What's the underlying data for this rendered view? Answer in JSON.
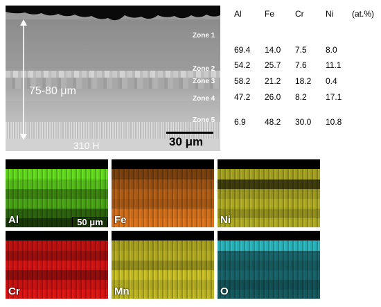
{
  "sem": {
    "zones": [
      "Zone 1",
      "Zone 2",
      "Zone 3",
      "Zone 4",
      "Zone 5"
    ],
    "thickness_label": "75-80 μm",
    "substrate_label": "310 H",
    "scale_label": "30 μm"
  },
  "composition": {
    "headers": [
      "Al",
      "Fe",
      "Cr",
      "Ni",
      "(at.%)"
    ],
    "rows": [
      [
        "69.4",
        "14.0",
        "7.5",
        "8.0"
      ],
      [
        "54.2",
        "25.7",
        "7.6",
        "11.1"
      ],
      [
        "58.2",
        "21.2",
        "18.2",
        "0.4"
      ],
      [
        "47.2",
        "26.0",
        "8.2",
        "17.1"
      ],
      [
        "6.9",
        "48.2",
        "30.0",
        "10.8"
      ]
    ]
  },
  "maps": [
    {
      "element": "Al",
      "color": "#5fd11e"
    },
    {
      "element": "Fe",
      "color": "#d2701c"
    },
    {
      "element": "Ni",
      "color": "#c6c22a"
    },
    {
      "element": "Cr",
      "color": "#d41414"
    },
    {
      "element": "Mn",
      "color": "#c9c128"
    },
    {
      "element": "O",
      "color": "#2fbfc9"
    }
  ],
  "map_scale_label": "50 μm"
}
